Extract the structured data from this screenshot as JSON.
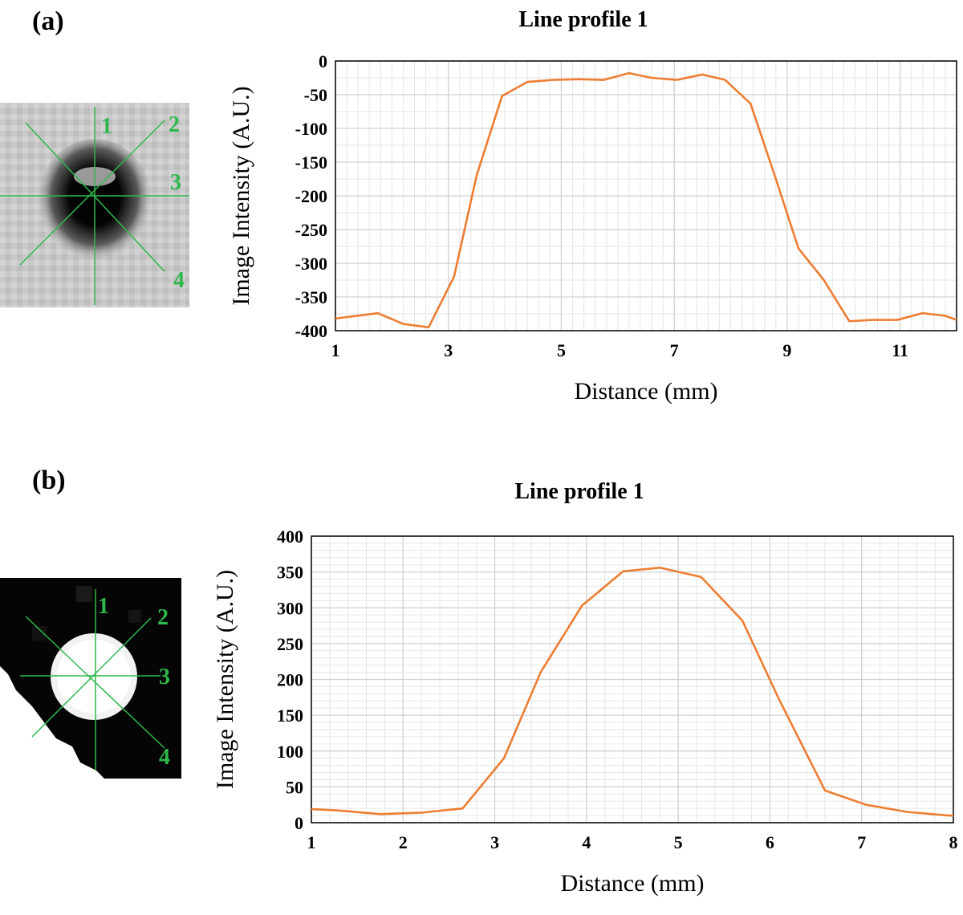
{
  "panel_a": {
    "label": "(a)",
    "thumbnail_numbers": [
      "1",
      "2",
      "3",
      "4"
    ]
  },
  "panel_b": {
    "label": "(b)",
    "thumbnail_numbers": [
      "1",
      "2",
      "3",
      "4"
    ]
  },
  "colors": {
    "line": "#ed7d31",
    "overlay": "#2db84b",
    "grid_major": "#d0d0d0",
    "grid_minor": "#e6e6e6"
  },
  "chart_data": [
    {
      "type": "line",
      "title": "Line profile 1",
      "xlabel": "Distance (mm)",
      "ylabel": "Image Intensity (A.U.)",
      "xlim": [
        1,
        12
      ],
      "ylim": [
        -400,
        0
      ],
      "xticks": [
        1,
        3,
        5,
        7,
        9,
        11
      ],
      "yticks": [
        0,
        -50,
        -100,
        -150,
        -200,
        -250,
        -300,
        -350,
        -400
      ],
      "grid": true,
      "series": [
        {
          "x": [
            1,
            1.75,
            2.2,
            2.65,
            3.1,
            3.5,
            3.95,
            4.4,
            4.85,
            5.3,
            5.75,
            6.2,
            6.6,
            7.05,
            7.5,
            7.9,
            8.35,
            8.8,
            9.2,
            9.65,
            10.1,
            10.5,
            10.95,
            11.4,
            11.8,
            12
          ],
          "y": [
            -382,
            -374,
            -390,
            -395,
            -320,
            -170,
            -52,
            -31,
            -28,
            -27,
            -28,
            -18,
            -25,
            -28,
            -20,
            -28,
            -63,
            -175,
            -278,
            -325,
            -386,
            -384,
            -384,
            -374,
            -378,
            -384
          ]
        }
      ]
    },
    {
      "type": "line",
      "title": "Line profile 1",
      "xlabel": "Distance (mm)",
      "ylabel": "Image Intensity (A.U.)",
      "xlim": [
        1,
        8
      ],
      "ylim": [
        0,
        400
      ],
      "xticks": [
        1,
        2,
        3,
        4,
        5,
        6,
        7,
        8
      ],
      "yticks": [
        0,
        50,
        100,
        150,
        200,
        250,
        300,
        350,
        400
      ],
      "grid": true,
      "series": [
        {
          "x": [
            1,
            1.3,
            1.75,
            2.2,
            2.65,
            3.1,
            3.5,
            3.95,
            4.4,
            4.8,
            5.25,
            5.7,
            6.1,
            6.6,
            7.05,
            7.5,
            7.95,
            8
          ],
          "y": [
            19,
            17,
            12,
            14,
            20,
            90,
            210,
            303,
            351,
            356,
            343,
            282,
            172,
            45,
            25,
            15,
            10,
            10
          ]
        }
      ]
    }
  ]
}
